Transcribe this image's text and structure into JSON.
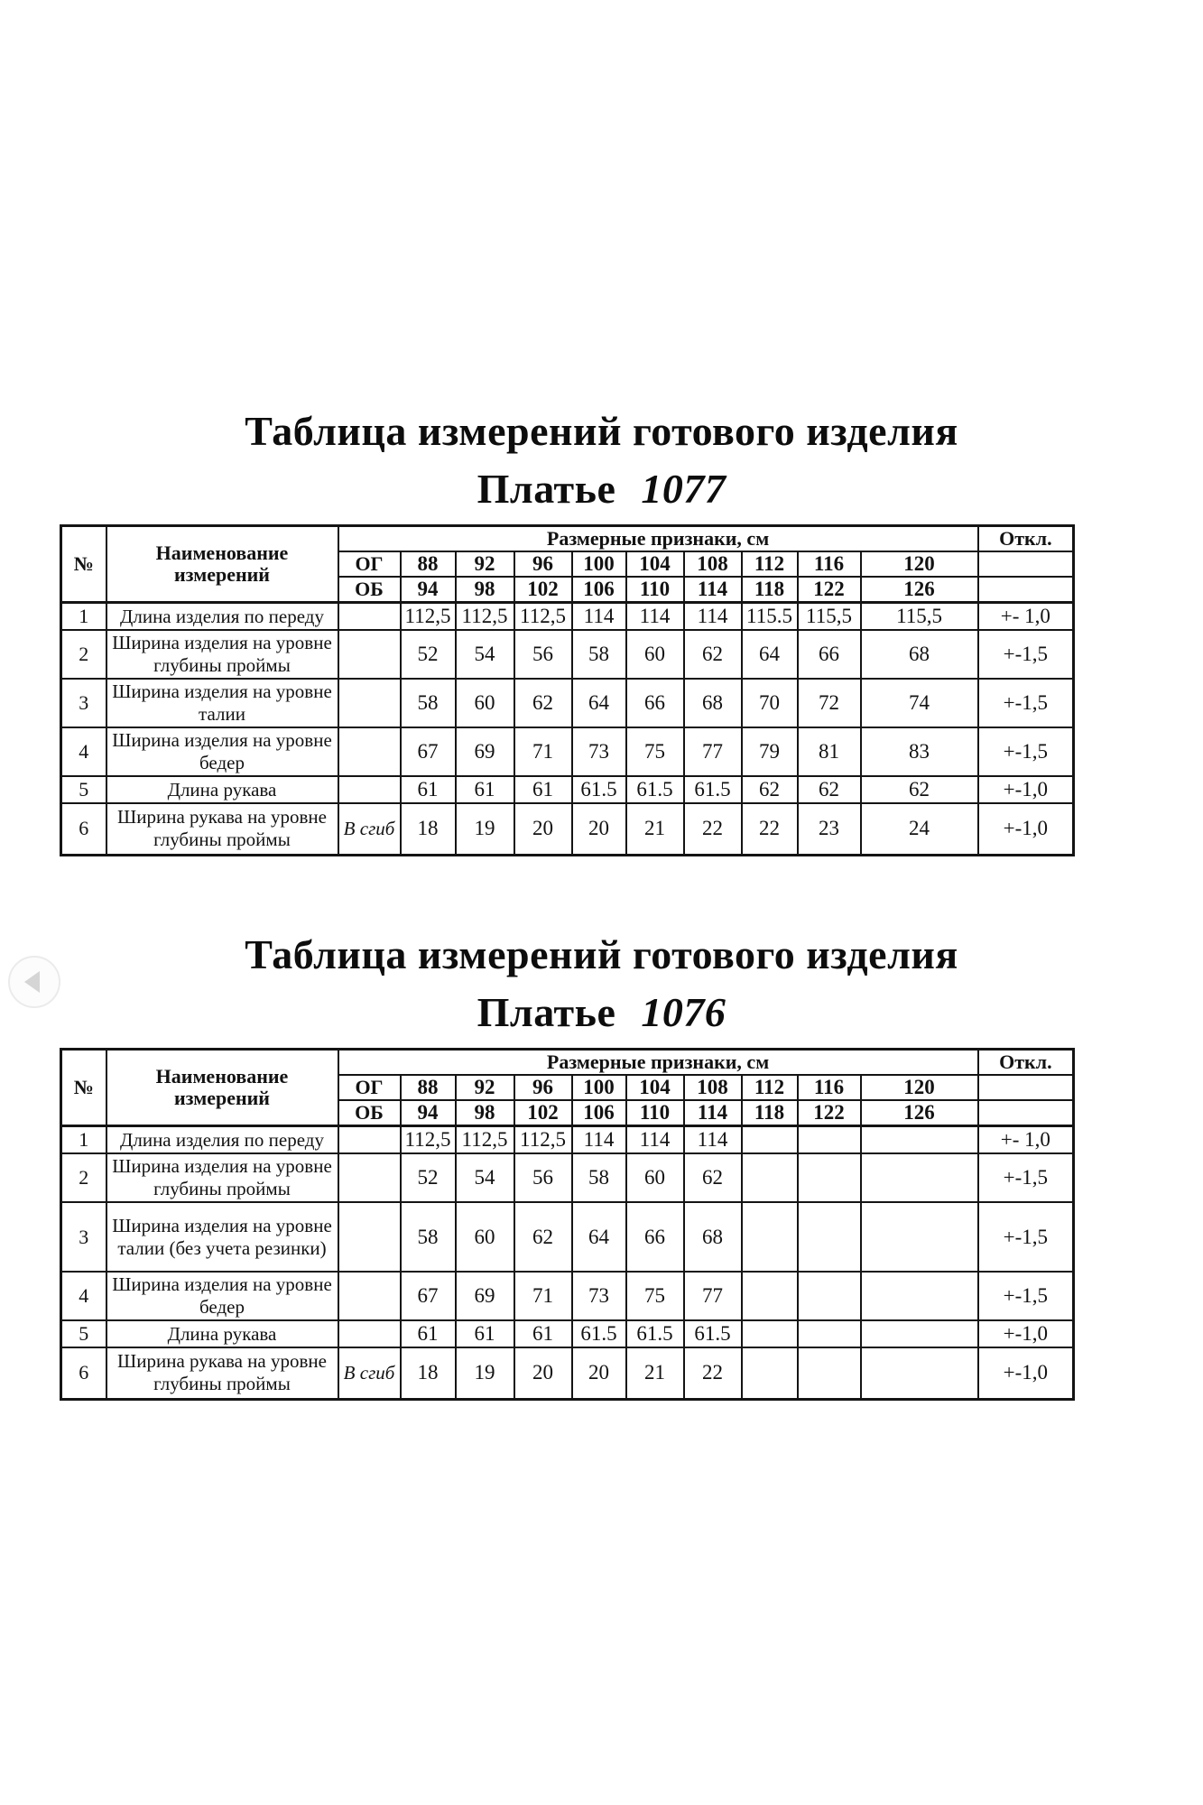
{
  "page": {
    "background": "#ffffff",
    "text_color": "#121212",
    "border_color": "#141414"
  },
  "carousel": {
    "prev_icon": "left-arrow-icon"
  },
  "tables": [
    {
      "title": "Таблица измерений готового изделия",
      "product_label": "Платье",
      "product_number": "1077",
      "header": {
        "num": "№",
        "name": "Наименование измерений",
        "size_group": "Размерные признаки, см",
        "deviation": "Откл.",
        "og_label": "ОГ",
        "ob_label": "ОБ",
        "og_sizes": [
          "88",
          "92",
          "96",
          "100",
          "104",
          "108",
          "112",
          "116",
          "120"
        ],
        "ob_sizes": [
          "94",
          "98",
          "102",
          "106",
          "110",
          "114",
          "118",
          "122",
          "126"
        ]
      },
      "rows": [
        {
          "num": "1",
          "name": "Длина изделия по переду",
          "fold": "",
          "values": [
            "112,5",
            "112,5",
            "112,5",
            "114",
            "114",
            "114",
            "115.5",
            "115,5",
            "115,5"
          ],
          "deviation": "+- 1,0"
        },
        {
          "num": "2",
          "name": "Ширина изделия на уровне глубины проймы",
          "fold": "",
          "values": [
            "52",
            "54",
            "56",
            "58",
            "60",
            "62",
            "64",
            "66",
            "68"
          ],
          "deviation": "+-1,5"
        },
        {
          "num": "3",
          "name": "Ширина изделия на уровне талии",
          "fold": "",
          "values": [
            "58",
            "60",
            "62",
            "64",
            "66",
            "68",
            "70",
            "72",
            "74"
          ],
          "deviation": "+-1,5"
        },
        {
          "num": "4",
          "name": "Ширина изделия на уровне бедер",
          "fold": "",
          "values": [
            "67",
            "69",
            "71",
            "73",
            "75",
            "77",
            "79",
            "81",
            "83"
          ],
          "deviation": "+-1,5"
        },
        {
          "num": "5",
          "name": "Длина рукава",
          "fold": "",
          "values": [
            "61",
            "61",
            "61",
            "61.5",
            "61.5",
            "61.5",
            "62",
            "62",
            "62"
          ],
          "deviation": "+-1,0"
        },
        {
          "num": "6",
          "name": "Ширина рукава на уровне глубины проймы",
          "fold": "В сгиб",
          "values": [
            "18",
            "19",
            "20",
            "20",
            "21",
            "22",
            "22",
            "23",
            "24"
          ],
          "deviation": "+-1,0"
        }
      ]
    },
    {
      "title": "Таблица измерений готового изделия",
      "product_label": "Платье",
      "product_number": "1076",
      "header": {
        "num": "№",
        "name": "Наименование измерений",
        "size_group": "Размерные признаки, см",
        "deviation": "Откл.",
        "og_label": "ОГ",
        "ob_label": "ОБ",
        "og_sizes": [
          "88",
          "92",
          "96",
          "100",
          "104",
          "108",
          "112",
          "116",
          "120"
        ],
        "ob_sizes": [
          "94",
          "98",
          "102",
          "106",
          "110",
          "114",
          "118",
          "122",
          "126"
        ]
      },
      "rows": [
        {
          "num": "1",
          "name": "Длина изделия по переду",
          "fold": "",
          "values": [
            "112,5",
            "112,5",
            "112,5",
            "114",
            "114",
            "114",
            "",
            "",
            ""
          ],
          "deviation": "+- 1,0"
        },
        {
          "num": "2",
          "name": "Ширина изделия на уровне глубины проймы",
          "fold": "",
          "values": [
            "52",
            "54",
            "56",
            "58",
            "60",
            "62",
            "",
            "",
            ""
          ],
          "deviation": "+-1,5"
        },
        {
          "num": "3",
          "name": "Ширина изделия на уровне талии (без учета резинки)",
          "fold": "",
          "values": [
            "58",
            "60",
            "62",
            "64",
            "66",
            "68",
            "",
            "",
            ""
          ],
          "deviation": "+-1,5"
        },
        {
          "num": "4",
          "name": "Ширина изделия на уровне бедер",
          "fold": "",
          "values": [
            "67",
            "69",
            "71",
            "73",
            "75",
            "77",
            "",
            "",
            ""
          ],
          "deviation": "+-1,5"
        },
        {
          "num": "5",
          "name": "Длина рукава",
          "fold": "",
          "values": [
            "61",
            "61",
            "61",
            "61.5",
            "61.5",
            "61.5",
            "",
            "",
            ""
          ],
          "deviation": "+-1,0"
        },
        {
          "num": "6",
          "name": "Ширина рукава на уровне глубины проймы",
          "fold": "В сгиб",
          "values": [
            "18",
            "19",
            "20",
            "20",
            "21",
            "22",
            "",
            "",
            ""
          ],
          "deviation": "+-1,0"
        }
      ]
    }
  ]
}
